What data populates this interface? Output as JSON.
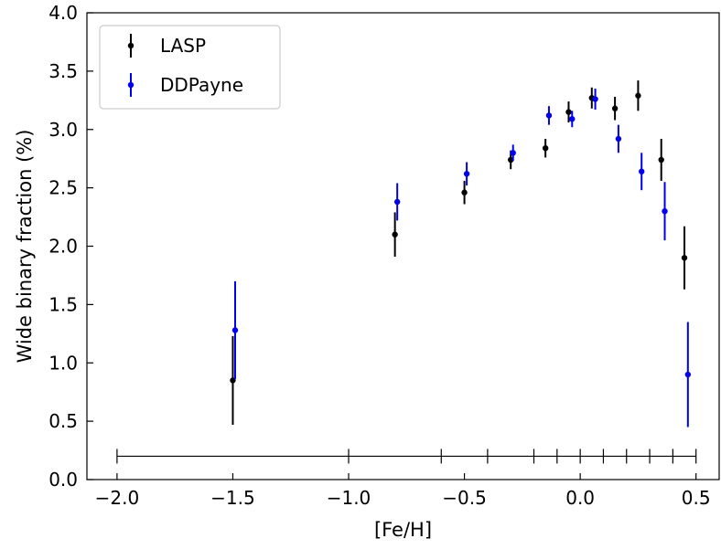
{
  "chart_data": {
    "type": "scatter",
    "xlabel": "[Fe/H]",
    "ylabel": "Wide binary fraction (%)",
    "xlim": [
      -2.13,
      0.6
    ],
    "ylim": [
      0.0,
      4.0
    ],
    "x_ticks": [
      -2.0,
      -1.5,
      -1.0,
      -0.5,
      0.0,
      0.5
    ],
    "x_tick_labels": [
      "−2.0",
      "−1.5",
      "−1.0",
      "−0.5",
      "0.0",
      "0.5"
    ],
    "y_ticks": [
      0.0,
      0.5,
      1.0,
      1.5,
      2.0,
      2.5,
      3.0,
      3.5,
      4.0
    ],
    "y_tick_labels": [
      "0.0",
      "0.5",
      "1.0",
      "1.5",
      "2.0",
      "2.5",
      "3.0",
      "3.5",
      "4.0"
    ],
    "legend_position": "top-left",
    "series": [
      {
        "name": "LASP",
        "color": "#000000",
        "points": [
          {
            "x": -1.5,
            "y": 0.85,
            "err": 0.38
          },
          {
            "x": -0.8,
            "y": 2.1,
            "err": 0.19
          },
          {
            "x": -0.5,
            "y": 2.46,
            "err": 0.1
          },
          {
            "x": -0.3,
            "y": 2.74,
            "err": 0.08
          },
          {
            "x": -0.15,
            "y": 2.84,
            "err": 0.08
          },
          {
            "x": -0.05,
            "y": 3.15,
            "err": 0.09
          },
          {
            "x": 0.05,
            "y": 3.27,
            "err": 0.09
          },
          {
            "x": 0.15,
            "y": 3.18,
            "err": 0.1
          },
          {
            "x": 0.25,
            "y": 3.29,
            "err": 0.13
          },
          {
            "x": 0.35,
            "y": 2.74,
            "err": 0.18
          },
          {
            "x": 0.45,
            "y": 1.9,
            "err": 0.27
          }
        ]
      },
      {
        "name": "DDPayne",
        "color": "#0000ee",
        "points": [
          {
            "x": -1.49,
            "y": 1.28,
            "err": 0.42
          },
          {
            "x": -0.79,
            "y": 2.38,
            "err": 0.16
          },
          {
            "x": -0.49,
            "y": 2.62,
            "err": 0.1
          },
          {
            "x": -0.29,
            "y": 2.8,
            "err": 0.07
          },
          {
            "x": -0.135,
            "y": 3.12,
            "err": 0.08
          },
          {
            "x": -0.035,
            "y": 3.09,
            "err": 0.07
          },
          {
            "x": 0.065,
            "y": 3.26,
            "err": 0.09
          },
          {
            "x": 0.165,
            "y": 2.92,
            "err": 0.12
          },
          {
            "x": 0.265,
            "y": 2.64,
            "err": 0.16
          },
          {
            "x": 0.365,
            "y": 2.3,
            "err": 0.25
          },
          {
            "x": 0.465,
            "y": 0.9,
            "err": 0.45
          }
        ]
      }
    ],
    "bin_edges": [
      -2.0,
      -1.0,
      -0.6,
      -0.4,
      -0.2,
      -0.1,
      0.0,
      0.1,
      0.2,
      0.3,
      0.4,
      0.5
    ],
    "bin_line_y": 0.2
  }
}
